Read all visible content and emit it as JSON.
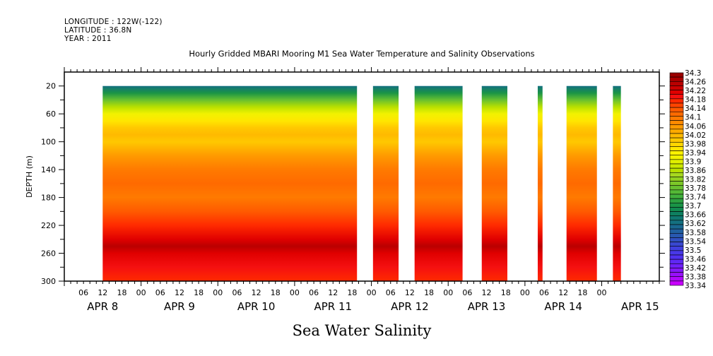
{
  "header": {
    "longitude": "LONGITUDE : 122W(-122)",
    "latitude": "LATITUDE : 36.8N",
    "year": "YEAR : 2011"
  },
  "chart_data": {
    "type": "heatmap",
    "title": "Hourly Gridded MBARI Mooring M1 Sea Water Temperature and Salinity Observations",
    "xlabel": "Sea Water Salinity",
    "ylabel": "DEPTH (m)",
    "y_axis": {
      "range": [
        300,
        0
      ],
      "inverted": true,
      "ticks": [
        20,
        60,
        100,
        140,
        180,
        220,
        260,
        300
      ],
      "minor_ticks": [
        40,
        80,
        120,
        160,
        200,
        240,
        280
      ]
    },
    "x_axis": {
      "units": "hours",
      "range_start": "APR 8 00:00",
      "range_hours": 186,
      "hour_tick_labels": [
        "06",
        "12",
        "18",
        "00",
        "06",
        "12",
        "18",
        "00",
        "06",
        "12",
        "18",
        "00",
        "06",
        "12",
        "18",
        "00",
        "06",
        "12",
        "18",
        "00",
        "06",
        "12",
        "18",
        "00",
        "06",
        "12",
        "18",
        "00"
      ],
      "hour_tick_positions_h": [
        6,
        12,
        18,
        24,
        30,
        36,
        42,
        48,
        54,
        60,
        66,
        72,
        78,
        84,
        90,
        96,
        102,
        108,
        114,
        120,
        126,
        132,
        138,
        144,
        150,
        156,
        162,
        168
      ],
      "date_labels": [
        {
          "label": "APR  8",
          "hour": 12
        },
        {
          "label": "APR  9",
          "hour": 36
        },
        {
          "label": "APR 10",
          "hour": 60
        },
        {
          "label": "APR 11",
          "hour": 84
        },
        {
          "label": "APR 12",
          "hour": 108
        },
        {
          "label": "APR 13",
          "hour": 132
        },
        {
          "label": "APR 14",
          "hour": 156
        },
        {
          "label": "APR 15",
          "hour": 180
        }
      ]
    },
    "data_depth_range_m": [
      20,
      300
    ],
    "data_segments_hours": [
      [
        12,
        91.5
      ],
      [
        96.5,
        104.5
      ],
      [
        109.5,
        124.5
      ],
      [
        130.5,
        138.5
      ],
      [
        148,
        149.5
      ],
      [
        157,
        166.5
      ],
      [
        171.5,
        174
      ]
    ],
    "profile_by_depth": {
      "depths_m": [
        20,
        30,
        40,
        50,
        60,
        70,
        80,
        90,
        100,
        120,
        140,
        160,
        180,
        200,
        220,
        240,
        250,
        260,
        280,
        300
      ],
      "salinity": [
        33.62,
        33.7,
        33.78,
        33.86,
        33.92,
        33.96,
        34.0,
        34.01,
        34.0,
        34.05,
        34.1,
        34.12,
        34.1,
        34.14,
        34.18,
        34.22,
        34.25,
        34.22,
        34.2,
        34.18
      ]
    },
    "colorbar": {
      "min": 33.34,
      "max": 34.3,
      "step": 0.02,
      "labels": [
        "34.3",
        "34.26",
        "34.22",
        "34.18",
        "34.14",
        "34.1",
        "34.06",
        "34.02",
        "33.98",
        "33.94",
        "33.9",
        "33.86",
        "33.82",
        "33.78",
        "33.74",
        "33.7",
        "33.66",
        "33.62",
        "33.58",
        "33.54",
        "33.5",
        "33.46",
        "33.42",
        "33.38",
        "33.34"
      ],
      "colors_high_to_low": [
        "#9a0000",
        "#aa0000",
        "#ba0000",
        "#cc0000",
        "#e00000",
        "#f51010",
        "#ff2a00",
        "#ff4400",
        "#ff5a00",
        "#ff6a00",
        "#ff7a00",
        "#ff8a00",
        "#ff9a00",
        "#ffaa00",
        "#ffba00",
        "#ffc800",
        "#ffd600",
        "#ffe600",
        "#fff200",
        "#f2f200",
        "#e0ee00",
        "#cce800",
        "#b8e000",
        "#a6d820",
        "#90d020",
        "#7cc828",
        "#68c030",
        "#54b836",
        "#40b03c",
        "#2ca040",
        "#1a9446",
        "#128a50",
        "#0e8060",
        "#107870",
        "#147080",
        "#1a6890",
        "#2060a0",
        "#2858b0",
        "#3050c0",
        "#3848d0",
        "#4040e0",
        "#4838e8",
        "#5030f0",
        "#6028f4",
        "#7020f8",
        "#8418fa",
        "#9810fc",
        "#b008fd",
        "#c800ff"
      ]
    }
  }
}
